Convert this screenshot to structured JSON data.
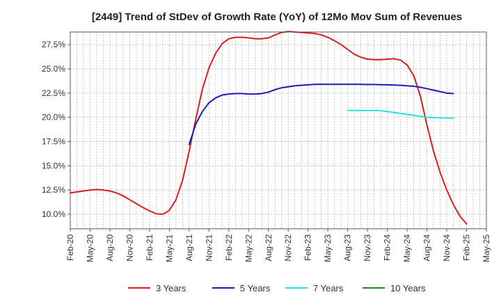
{
  "chart_data": {
    "type": "line",
    "title": "[2449]  Trend of StDev of Growth Rate (YoY) of 12Mo Mov Sum of Revenues",
    "xlabel": "",
    "ylabel": "",
    "ylim": [
      8.5,
      28.8
    ],
    "y_ticks": [
      10.0,
      12.5,
      15.0,
      17.5,
      20.0,
      22.5,
      25.0,
      27.5
    ],
    "y_tick_labels": [
      "10.0%",
      "12.5%",
      "15.0%",
      "17.5%",
      "20.0%",
      "22.5%",
      "25.0%",
      "27.5%"
    ],
    "x_ticks": [
      "Feb-20",
      "May-20",
      "Aug-20",
      "Nov-20",
      "Feb-21",
      "May-21",
      "Aug-21",
      "Nov-21",
      "Feb-22",
      "May-22",
      "Aug-22",
      "Nov-22",
      "Feb-23",
      "May-23",
      "Aug-23",
      "Nov-23",
      "Feb-24",
      "May-24",
      "Aug-24",
      "Nov-24",
      "Feb-25",
      "May-25"
    ],
    "grid": true,
    "legend_position": "bottom",
    "series": [
      {
        "name": "3 Years",
        "color": "#dd1c1c",
        "points": [
          [
            0,
            12.2
          ],
          [
            1,
            12.3
          ],
          [
            2,
            12.4
          ],
          [
            3,
            12.5
          ],
          [
            4,
            12.55
          ],
          [
            5,
            12.5
          ],
          [
            6,
            12.4
          ],
          [
            7,
            12.2
          ],
          [
            8,
            11.9
          ],
          [
            9,
            11.5
          ],
          [
            10,
            11.1
          ],
          [
            11,
            10.7
          ],
          [
            12,
            10.35
          ],
          [
            13,
            10.05
          ],
          [
            14,
            10.0
          ],
          [
            15,
            10.4
          ],
          [
            16,
            11.5
          ],
          [
            17,
            13.5
          ],
          [
            18,
            16.5
          ],
          [
            19,
            19.8
          ],
          [
            20,
            22.9
          ],
          [
            21,
            25.1
          ],
          [
            22,
            26.6
          ],
          [
            23,
            27.6
          ],
          [
            24,
            28.1
          ],
          [
            25,
            28.25
          ],
          [
            26,
            28.25
          ],
          [
            27,
            28.2
          ],
          [
            28,
            28.1
          ],
          [
            29,
            28.1
          ],
          [
            30,
            28.2
          ],
          [
            31,
            28.5
          ],
          [
            32,
            28.75
          ],
          [
            33,
            28.85
          ],
          [
            34,
            28.8
          ],
          [
            35,
            28.75
          ],
          [
            36,
            28.7
          ],
          [
            37,
            28.65
          ],
          [
            38,
            28.5
          ],
          [
            39,
            28.25
          ],
          [
            40,
            27.9
          ],
          [
            41,
            27.5
          ],
          [
            42,
            27.0
          ],
          [
            43,
            26.5
          ],
          [
            44,
            26.2
          ],
          [
            45,
            26.0
          ],
          [
            46,
            25.95
          ],
          [
            47,
            25.95
          ],
          [
            48,
            26.0
          ],
          [
            49,
            26.05
          ],
          [
            50,
            25.9
          ],
          [
            51,
            25.4
          ],
          [
            52,
            24.3
          ],
          [
            53,
            22.2
          ],
          [
            54,
            19.2
          ],
          [
            55,
            16.5
          ],
          [
            56,
            14.3
          ],
          [
            57,
            12.5
          ],
          [
            58,
            11.0
          ],
          [
            59,
            9.8
          ],
          [
            60,
            9.0
          ]
        ]
      },
      {
        "name": "5 Years",
        "color": "#1a1ab8",
        "points": [
          [
            18,
            17.2
          ],
          [
            19,
            19.3
          ],
          [
            20,
            20.6
          ],
          [
            21,
            21.5
          ],
          [
            22,
            22.0
          ],
          [
            23,
            22.3
          ],
          [
            24,
            22.4
          ],
          [
            25,
            22.45
          ],
          [
            26,
            22.45
          ],
          [
            27,
            22.4
          ],
          [
            28,
            22.4
          ],
          [
            29,
            22.45
          ],
          [
            30,
            22.6
          ],
          [
            31,
            22.85
          ],
          [
            32,
            23.05
          ],
          [
            33,
            23.15
          ],
          [
            34,
            23.25
          ],
          [
            35,
            23.3
          ],
          [
            36,
            23.35
          ],
          [
            37,
            23.4
          ],
          [
            38,
            23.4
          ],
          [
            39,
            23.4
          ],
          [
            40,
            23.4
          ],
          [
            41,
            23.4
          ],
          [
            42,
            23.4
          ],
          [
            43,
            23.4
          ],
          [
            44,
            23.4
          ],
          [
            45,
            23.38
          ],
          [
            46,
            23.38
          ],
          [
            47,
            23.37
          ],
          [
            48,
            23.35
          ],
          [
            49,
            23.33
          ],
          [
            50,
            23.3
          ],
          [
            51,
            23.25
          ],
          [
            52,
            23.2
          ],
          [
            53,
            23.1
          ],
          [
            54,
            22.95
          ],
          [
            55,
            22.8
          ],
          [
            56,
            22.65
          ],
          [
            57,
            22.5
          ],
          [
            58,
            22.45
          ]
        ]
      },
      {
        "name": "7 Years",
        "color": "#22e2e2",
        "points": [
          [
            42,
            20.7
          ],
          [
            43,
            20.7
          ],
          [
            44,
            20.7
          ],
          [
            45,
            20.7
          ],
          [
            46,
            20.7
          ],
          [
            47,
            20.68
          ],
          [
            48,
            20.6
          ],
          [
            49,
            20.5
          ],
          [
            50,
            20.4
          ],
          [
            51,
            20.3
          ],
          [
            52,
            20.2
          ],
          [
            53,
            20.1
          ],
          [
            54,
            20.0
          ],
          [
            55,
            19.97
          ],
          [
            56,
            19.95
          ],
          [
            57,
            19.93
          ],
          [
            58,
            19.92
          ]
        ]
      },
      {
        "name": "10 Years",
        "color": "#228b22",
        "points": []
      }
    ]
  }
}
